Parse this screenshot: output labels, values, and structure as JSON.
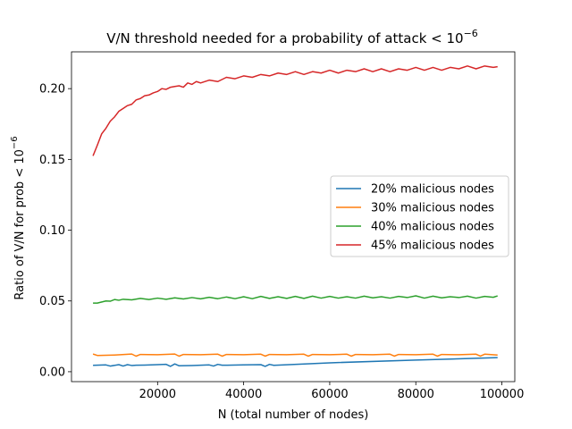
{
  "chart_data": {
    "type": "line",
    "title": "V/N threshold needed for a probability of attack < 10",
    "title_sup": "−6",
    "xlabel": "N (total number of nodes)",
    "ylabel": "Ratio of V/N for prob < 10",
    "ylabel_sup": "−6",
    "xlim": [
      0,
      103000
    ],
    "ylim": [
      -0.007,
      0.226
    ],
    "x_ticks": [
      20000,
      40000,
      60000,
      80000,
      100000
    ],
    "x_tick_labels": [
      "20000",
      "40000",
      "60000",
      "80000",
      "100000"
    ],
    "y_ticks": [
      0.0,
      0.05,
      0.1,
      0.15,
      0.2
    ],
    "y_tick_labels": [
      "0.00",
      "0.05",
      "0.10",
      "0.15",
      "0.20"
    ],
    "legend_position": "center-right",
    "grid": false,
    "series": [
      {
        "name": "20% malicious nodes",
        "color": "#1f77b4",
        "x": [
          5000,
          8000,
          9000,
          11000,
          12000,
          13000,
          14000,
          15000,
          17000,
          20000,
          22000,
          23000,
          24000,
          25000,
          28000,
          32000,
          33000,
          34000,
          35000,
          36000,
          40000,
          44000,
          45000,
          46000,
          47000,
          60000,
          80000,
          99000
        ],
        "y": [
          0.0045,
          0.0048,
          0.004,
          0.005,
          0.004,
          0.005,
          0.0044,
          0.0046,
          0.0047,
          0.005,
          0.0052,
          0.0038,
          0.0055,
          0.0042,
          0.0044,
          0.0048,
          0.004,
          0.0052,
          0.0046,
          0.0046,
          0.0048,
          0.005,
          0.0038,
          0.0052,
          0.0045,
          0.0063,
          0.0082,
          0.01
        ]
      },
      {
        "name": "30% malicious nodes",
        "color": "#ff7f0e",
        "x": [
          5000,
          6000,
          10000,
          14000,
          15000,
          16000,
          20000,
          24000,
          25000,
          26000,
          30000,
          34000,
          35000,
          36000,
          40000,
          44000,
          45000,
          46000,
          50000,
          54000,
          55000,
          56000,
          60000,
          64000,
          65000,
          66000,
          70000,
          74000,
          75000,
          76000,
          80000,
          84000,
          85000,
          86000,
          90000,
          94000,
          95000,
          96000,
          99000
        ],
        "y": [
          0.0125,
          0.0115,
          0.0118,
          0.0125,
          0.011,
          0.0122,
          0.012,
          0.0125,
          0.011,
          0.0122,
          0.012,
          0.0124,
          0.011,
          0.0122,
          0.012,
          0.0124,
          0.011,
          0.0122,
          0.012,
          0.0124,
          0.011,
          0.0122,
          0.012,
          0.0124,
          0.011,
          0.0122,
          0.012,
          0.0124,
          0.011,
          0.0122,
          0.012,
          0.0124,
          0.011,
          0.0122,
          0.012,
          0.0124,
          0.011,
          0.0124,
          0.0118
        ]
      },
      {
        "name": "40% malicious nodes",
        "color": "#2ca02c",
        "x": [
          5000,
          6000,
          8000,
          9000,
          10000,
          11000,
          12000,
          14000,
          16000,
          18000,
          20000,
          22000,
          24000,
          26000,
          28000,
          30000,
          32000,
          34000,
          36000,
          38000,
          40000,
          42000,
          44000,
          46000,
          48000,
          50000,
          52000,
          54000,
          56000,
          58000,
          60000,
          62000,
          64000,
          66000,
          68000,
          70000,
          72000,
          74000,
          76000,
          78000,
          80000,
          82000,
          84000,
          86000,
          88000,
          90000,
          92000,
          94000,
          96000,
          98000,
          99000
        ],
        "y": [
          0.0485,
          0.0485,
          0.05,
          0.0498,
          0.051,
          0.0505,
          0.0512,
          0.0508,
          0.0518,
          0.051,
          0.052,
          0.0512,
          0.0522,
          0.0514,
          0.0524,
          0.0515,
          0.0526,
          0.0516,
          0.0528,
          0.0516,
          0.053,
          0.0516,
          0.0532,
          0.0518,
          0.053,
          0.0518,
          0.0532,
          0.0518,
          0.0534,
          0.052,
          0.0532,
          0.052,
          0.053,
          0.052,
          0.0534,
          0.0522,
          0.053,
          0.052,
          0.0532,
          0.0524,
          0.0536,
          0.052,
          0.0534,
          0.0522,
          0.053,
          0.0524,
          0.0534,
          0.052,
          0.0532,
          0.0526,
          0.0536
        ]
      },
      {
        "name": "45% malicious nodes",
        "color": "#d62728",
        "x": [
          5000,
          6000,
          7000,
          8000,
          9000,
          10000,
          11000,
          12000,
          13000,
          14000,
          15000,
          16000,
          17000,
          18000,
          19000,
          20000,
          21000,
          22000,
          23000,
          24000,
          25000,
          26000,
          27000,
          28000,
          29000,
          30000,
          32000,
          34000,
          36000,
          38000,
          40000,
          42000,
          44000,
          46000,
          48000,
          50000,
          52000,
          54000,
          56000,
          58000,
          60000,
          62000,
          64000,
          66000,
          68000,
          70000,
          72000,
          74000,
          76000,
          78000,
          80000,
          82000,
          84000,
          86000,
          88000,
          90000,
          92000,
          94000,
          96000,
          98000,
          99000
        ],
        "y": [
          0.1525,
          0.16,
          0.168,
          0.172,
          0.177,
          0.18,
          0.184,
          0.186,
          0.188,
          0.189,
          0.192,
          0.193,
          0.195,
          0.1955,
          0.197,
          0.198,
          0.2,
          0.1995,
          0.201,
          0.2015,
          0.202,
          0.201,
          0.204,
          0.203,
          0.205,
          0.204,
          0.206,
          0.205,
          0.208,
          0.207,
          0.209,
          0.208,
          0.21,
          0.209,
          0.211,
          0.21,
          0.212,
          0.21,
          0.212,
          0.211,
          0.213,
          0.211,
          0.213,
          0.212,
          0.214,
          0.212,
          0.214,
          0.212,
          0.214,
          0.213,
          0.215,
          0.213,
          0.215,
          0.213,
          0.215,
          0.214,
          0.216,
          0.214,
          0.216,
          0.215,
          0.2155
        ]
      }
    ]
  }
}
